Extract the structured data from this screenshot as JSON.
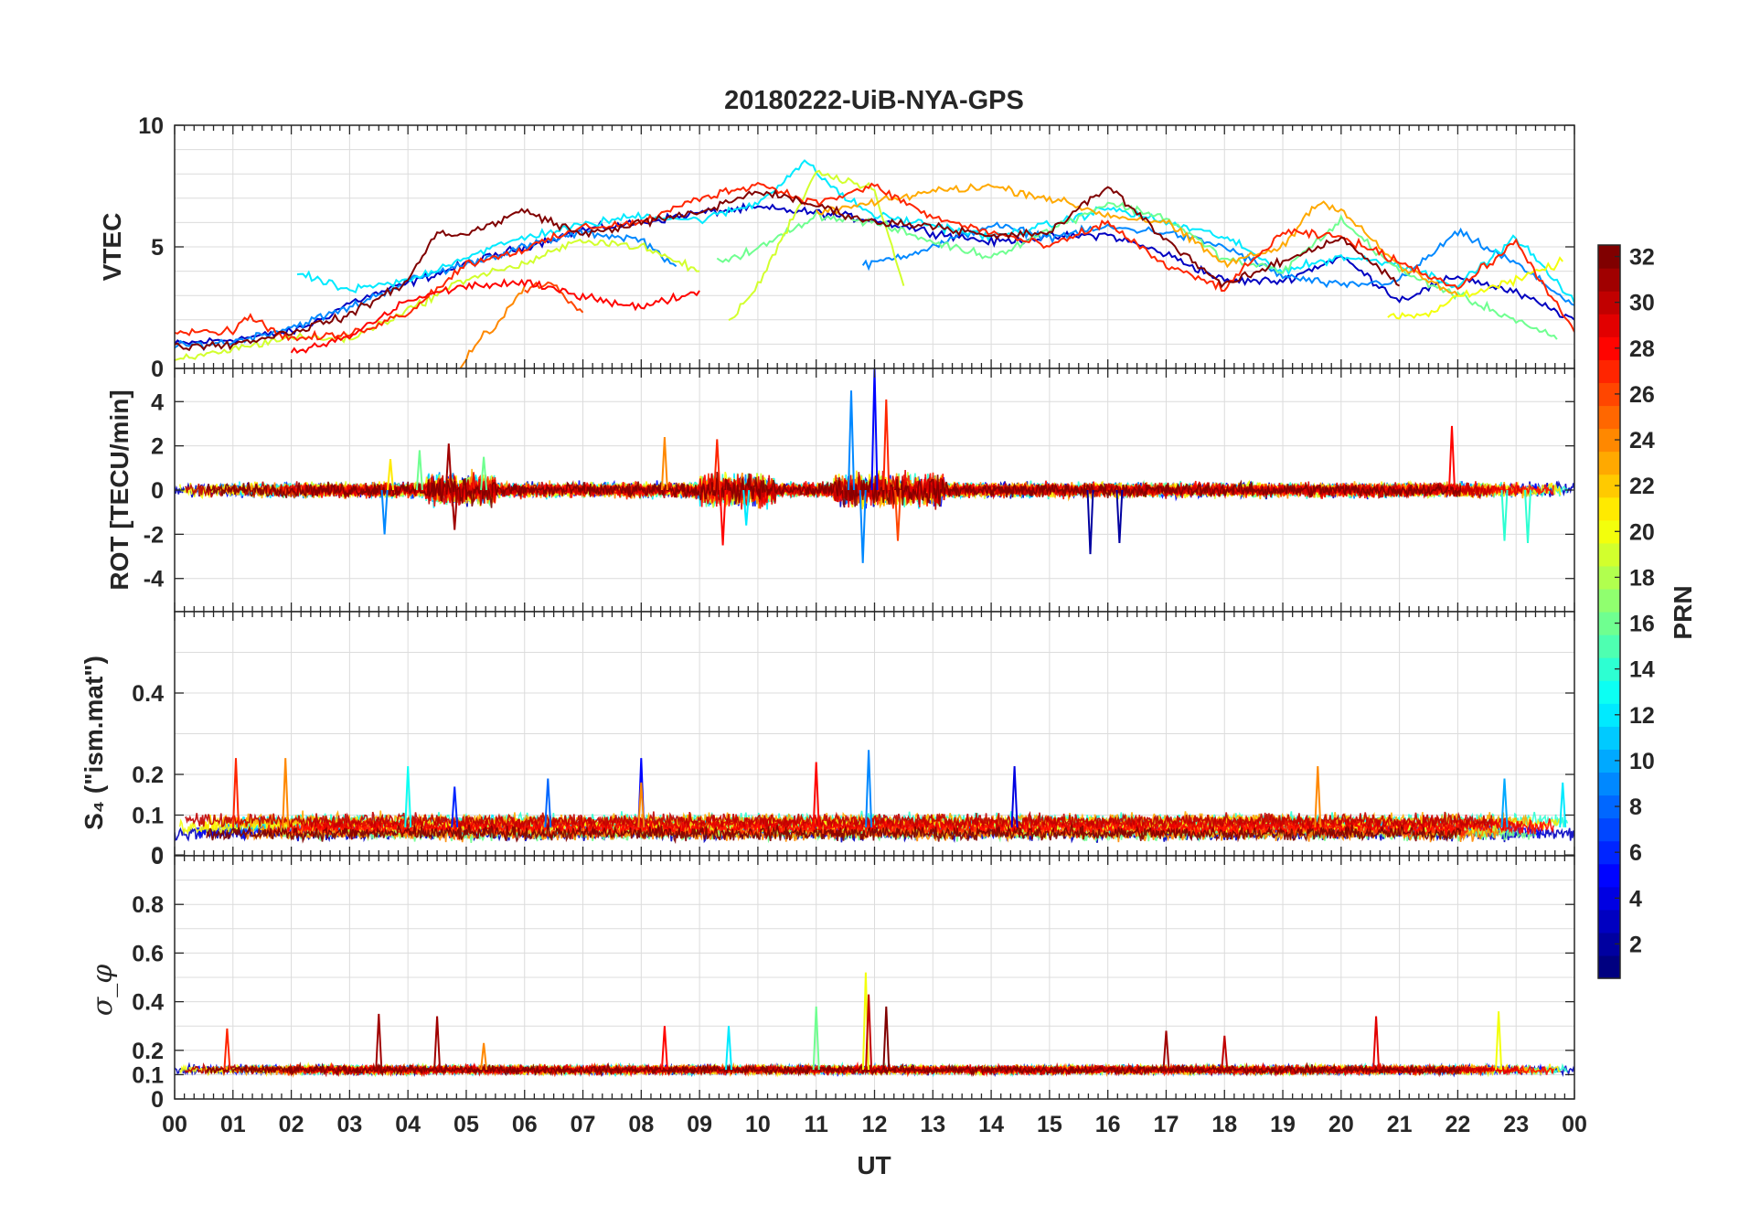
{
  "chart_data": {
    "type": "line",
    "title": "20180222-UiB-NYA-GPS",
    "xlabel": "UT",
    "x_tick_labels": [
      "00",
      "01",
      "02",
      "03",
      "04",
      "05",
      "06",
      "07",
      "08",
      "09",
      "10",
      "11",
      "12",
      "13",
      "14",
      "15",
      "16",
      "17",
      "18",
      "19",
      "20",
      "21",
      "22",
      "23",
      "00"
    ],
    "xlim_hours": [
      0,
      24
    ],
    "grid": true,
    "colormap": "jet",
    "colorbar": {
      "label": "PRN",
      "range": [
        1,
        32
      ],
      "ticks": [
        "2",
        "4",
        "6",
        "8",
        "10",
        "12",
        "14",
        "16",
        "18",
        "20",
        "22",
        "24",
        "26",
        "28",
        "30",
        "32"
      ]
    },
    "panels": [
      {
        "id": "vtec",
        "ylabel": "VTEC",
        "ylim": [
          0,
          10
        ],
        "yticks": [
          "0",
          "5",
          "10"
        ],
        "series": [
          {
            "prn": 3,
            "x": [
              0.0,
              1,
              2,
              2.5,
              3,
              4,
              5,
              6,
              7,
              8,
              9,
              10,
              11,
              12,
              13,
              14,
              15,
              16,
              17,
              18,
              19,
              20,
              21,
              22,
              23,
              24
            ],
            "y": [
              1.0,
              1.2,
              1.5,
              2.0,
              2.7,
              3.5,
              4.3,
              5.0,
              5.7,
              6.0,
              6.4,
              6.6,
              6.4,
              6.1,
              5.6,
              5.2,
              5.4,
              5.5,
              4.7,
              3.6,
              3.6,
              4.6,
              2.8,
              3.8,
              3.1,
              2.0
            ]
          },
          {
            "prn": 9,
            "x": [
              0.0,
              1,
              2,
              3,
              4,
              5,
              6,
              7,
              8,
              8.6
            ],
            "y": [
              0.9,
              1.1,
              1.7,
              2.5,
              3.6,
              4.3,
              5.0,
              5.6,
              5.3,
              4.2
            ]
          },
          {
            "prn": 9,
            "x": [
              11.8,
              13,
              14,
              15,
              16,
              17,
              18,
              19,
              20,
              21,
              22,
              23,
              24
            ],
            "y": [
              4.2,
              5.0,
              5.9,
              5.4,
              5.8,
              5.6,
              5.0,
              3.8,
              3.4,
              3.6,
              5.6,
              4.3,
              2.6
            ]
          },
          {
            "prn": 12,
            "x": [
              2.1,
              3,
              4,
              5,
              6,
              7,
              8,
              9,
              10,
              10.8,
              11.5,
              12,
              13,
              14,
              15,
              16,
              17,
              18,
              19,
              20,
              21,
              22,
              23,
              24
            ],
            "y": [
              3.9,
              3.2,
              3.6,
              4.6,
              5.4,
              5.9,
              6.3,
              6.1,
              6.8,
              8.5,
              7.0,
              6.3,
              5.9,
              5.4,
              5.9,
              6.6,
              6.0,
              5.4,
              4.0,
              4.6,
              4.3,
              3.4,
              5.4,
              2.7
            ]
          },
          {
            "prn": 16,
            "x": [
              9.3,
              10,
              11,
              12,
              13,
              14,
              15,
              16,
              17,
              18,
              19,
              20,
              21,
              22,
              23,
              23.7
            ],
            "y": [
              4.4,
              4.9,
              6.3,
              6.0,
              5.2,
              4.6,
              5.7,
              6.8,
              6.2,
              4.5,
              4.0,
              6.1,
              4.0,
              3.0,
              2.0,
              1.2
            ]
          },
          {
            "prn": 19,
            "x": [
              0.0,
              1,
              2,
              3,
              4,
              5,
              6,
              7,
              8,
              9
            ],
            "y": [
              0.3,
              0.8,
              1.3,
              1.2,
              2.4,
              3.7,
              4.3,
              5.3,
              5.0,
              4.0
            ]
          },
          {
            "prn": 19,
            "x": [
              9.5,
              10,
              11,
              12,
              12.5
            ],
            "y": [
              1.9,
              3.4,
              8.1,
              7.4,
              3.4
            ]
          },
          {
            "prn": 20,
            "x": [
              20.8,
              21.5,
              22,
              23,
              23.8
            ],
            "y": [
              2.1,
              2.2,
              3.0,
              3.6,
              4.4
            ]
          },
          {
            "prn": 23,
            "x": [
              11,
              12,
              13,
              14,
              15,
              16,
              17,
              18,
              19,
              19.6,
              20,
              21,
              22
            ],
            "y": [
              6.4,
              6.8,
              7.3,
              7.5,
              7.0,
              6.3,
              6.0,
              4.3,
              5.0,
              6.9,
              6.5,
              4.2,
              3.0
            ]
          },
          {
            "prn": 24,
            "x": [
              4.9,
              5.2,
              5.6,
              6.0
            ],
            "y": [
              0.0,
              1.1,
              2.0,
              3.4
            ]
          },
          {
            "prn": 26,
            "x": [
              6.0,
              6.4,
              7.0
            ],
            "y": [
              3.2,
              3.6,
              2.3
            ]
          },
          {
            "prn": 27,
            "x": [
              0.0,
              1,
              1.2,
              2,
              3,
              4,
              5,
              6,
              7,
              8,
              9,
              10,
              11,
              12,
              13,
              14,
              15,
              16,
              17,
              18,
              19,
              20,
              21,
              22,
              23,
              24
            ],
            "y": [
              1.6,
              1.5,
              2.2,
              1.2,
              1.4,
              2.3,
              4.3,
              4.9,
              5.8,
              6.0,
              7.0,
              7.6,
              6.8,
              7.5,
              6.2,
              5.6,
              5.0,
              6.0,
              4.2,
              3.3,
              5.6,
              5.4,
              4.4,
              3.3,
              5.2,
              1.5
            ]
          },
          {
            "prn": 28,
            "x": [
              2.0,
              3,
              4,
              5,
              6,
              7,
              8,
              9
            ],
            "y": [
              0.6,
              1.3,
              2.8,
              3.4,
              3.5,
              3.0,
              2.5,
              3.2
            ]
          },
          {
            "prn": 32,
            "x": [
              0.0,
              1,
              2,
              3,
              4,
              4.5,
              5,
              6,
              6.5,
              7,
              8,
              9,
              10,
              11,
              12,
              13,
              14,
              15,
              16,
              17,
              18,
              19,
              20,
              21
            ],
            "y": [
              0.9,
              1.0,
              1.5,
              2.2,
              3.6,
              5.6,
              5.5,
              6.5,
              6.0,
              5.5,
              6.0,
              6.4,
              7.3,
              6.7,
              6.0,
              5.9,
              5.4,
              5.6,
              7.5,
              5.3,
              3.4,
              4.4,
              5.4,
              3.4
            ]
          }
        ]
      },
      {
        "id": "rot",
        "ylabel": "ROT [TECU/min]",
        "ylim": [
          -5.5,
          5.5
        ],
        "yticks": [
          "-4",
          "-2",
          "0",
          "2",
          "4"
        ],
        "spikes": [
          {
            "prn": 9,
            "x": 3.6,
            "y": -2.0
          },
          {
            "prn": 21,
            "x": 3.7,
            "y": 1.4
          },
          {
            "prn": 16,
            "x": 4.2,
            "y": 1.8
          },
          {
            "prn": 31,
            "x": 4.7,
            "y": 2.1
          },
          {
            "prn": 31,
            "x": 4.8,
            "y": -1.8
          },
          {
            "prn": 16,
            "x": 5.3,
            "y": 1.5
          },
          {
            "prn": 24,
            "x": 8.4,
            "y": 2.4
          },
          {
            "prn": 27,
            "x": 9.3,
            "y": 2.3
          },
          {
            "prn": 28,
            "x": 9.4,
            "y": -2.5
          },
          {
            "prn": 12,
            "x": 9.8,
            "y": -1.6
          },
          {
            "prn": 9,
            "x": 11.6,
            "y": 4.5
          },
          {
            "prn": 9,
            "x": 11.8,
            "y": -3.3
          },
          {
            "prn": 5,
            "x": 12.0,
            "y": 5.5
          },
          {
            "prn": 27,
            "x": 12.2,
            "y": 4.1
          },
          {
            "prn": 26,
            "x": 12.4,
            "y": -2.3
          },
          {
            "prn": 2,
            "x": 15.7,
            "y": -2.9
          },
          {
            "prn": 2,
            "x": 16.2,
            "y": -2.4
          },
          {
            "prn": 28,
            "x": 21.9,
            "y": 2.9
          },
          {
            "prn": 14,
            "x": 22.8,
            "y": -2.3
          },
          {
            "prn": 14,
            "x": 23.2,
            "y": -2.4
          }
        ]
      },
      {
        "id": "s4",
        "ylabel": "S₄ (\"ism.mat\")",
        "ylim": [
          0,
          0.6
        ],
        "yticks": [
          "0",
          "0",
          "0.1",
          "0.2",
          "0.4"
        ],
        "spikes": [
          {
            "prn": 27,
            "x": 1.05,
            "y": 0.24
          },
          {
            "prn": 24,
            "x": 1.9,
            "y": 0.24
          },
          {
            "prn": 13,
            "x": 4.0,
            "y": 0.22
          },
          {
            "prn": 6,
            "x": 4.8,
            "y": 0.17
          },
          {
            "prn": 8,
            "x": 6.4,
            "y": 0.19
          },
          {
            "prn": 5,
            "x": 8.0,
            "y": 0.24
          },
          {
            "prn": 24,
            "x": 8.0,
            "y": 0.18
          },
          {
            "prn": 28,
            "x": 11.0,
            "y": 0.23
          },
          {
            "prn": 9,
            "x": 11.9,
            "y": 0.26
          },
          {
            "prn": 4,
            "x": 14.4,
            "y": 0.22
          },
          {
            "prn": 24,
            "x": 19.6,
            "y": 0.22
          },
          {
            "prn": 10,
            "x": 22.8,
            "y": 0.19
          },
          {
            "prn": 12,
            "x": 23.8,
            "y": 0.18
          }
        ]
      },
      {
        "id": "sigma",
        "ylabel": "σ_φ",
        "ylim": [
          0,
          1
        ],
        "yticks": [
          "0",
          "0.1",
          "0.2",
          "0.4",
          "0.6",
          "0.8"
        ],
        "spikes": [
          {
            "prn": 27,
            "x": 0.9,
            "y": 0.29
          },
          {
            "prn": 31,
            "x": 3.5,
            "y": 0.35
          },
          {
            "prn": 31,
            "x": 4.5,
            "y": 0.34
          },
          {
            "prn": 24,
            "x": 5.3,
            "y": 0.23
          },
          {
            "prn": 28,
            "x": 8.4,
            "y": 0.3
          },
          {
            "prn": 12,
            "x": 9.5,
            "y": 0.3
          },
          {
            "prn": 16,
            "x": 11.0,
            "y": 0.38
          },
          {
            "prn": 20,
            "x": 11.85,
            "y": 0.52
          },
          {
            "prn": 30,
            "x": 11.9,
            "y": 0.43
          },
          {
            "prn": 32,
            "x": 12.2,
            "y": 0.38
          },
          {
            "prn": 31,
            "x": 17.0,
            "y": 0.28
          },
          {
            "prn": 30,
            "x": 18.0,
            "y": 0.26
          },
          {
            "prn": 29,
            "x": 20.6,
            "y": 0.34
          },
          {
            "prn": 20,
            "x": 22.7,
            "y": 0.36
          }
        ]
      }
    ]
  }
}
